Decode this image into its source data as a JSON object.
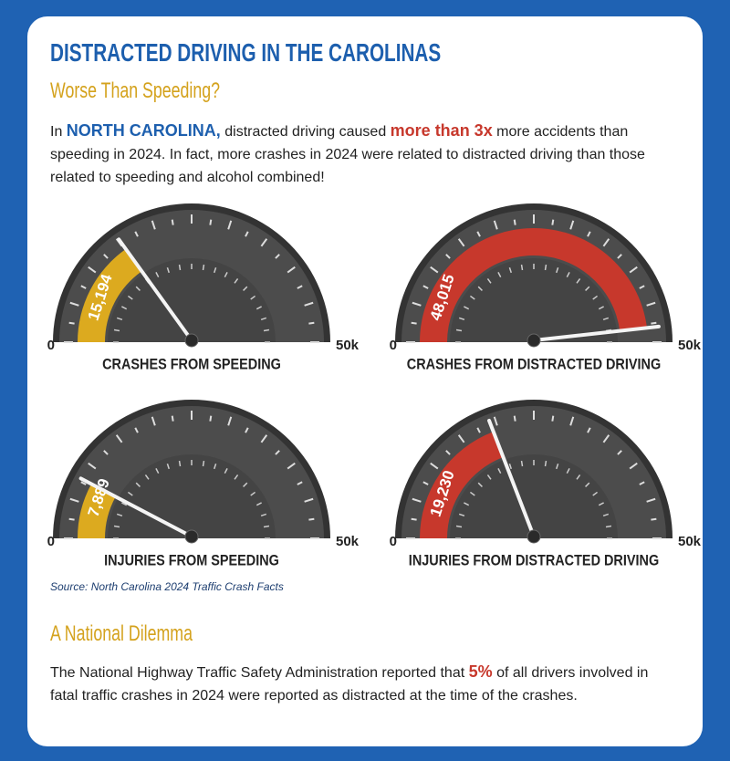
{
  "header": {
    "title": "DISTRACTED DRIVING IN THE CAROLINAS",
    "subtitle": "Worse Than Speeding?"
  },
  "intro": {
    "parts": [
      "In ",
      "NORTH CAROLINA,",
      " distracted driving caused ",
      "more than 3x",
      " more accidents than speeding in 2024. In fact, more crashes in 2024 were related to distracted driving than those related to speeding and alcohol combined!"
    ]
  },
  "chart_data": [
    {
      "type": "gauge",
      "title": "CRASHES FROM SPEEDING",
      "values": [
        15194
      ],
      "value_labels": [
        "15,194"
      ],
      "color": "#dcaa1f",
      "ylim": [
        0,
        50000
      ],
      "yticks": [
        0,
        {
          "value": 50000,
          "label": "50k"
        }
      ]
    },
    {
      "type": "gauge",
      "title": "CRASHES FROM DISTRACTED DRIVING",
      "values": [
        48015
      ],
      "value_labels": [
        "48,015"
      ],
      "color": "#c7382c",
      "ylim": [
        0,
        50000
      ],
      "yticks": [
        0,
        {
          "value": 50000,
          "label": "50k"
        }
      ]
    },
    {
      "type": "gauge",
      "title": "INJURIES FROM SPEEDING",
      "values": [
        7889
      ],
      "value_labels": [
        "7,889"
      ],
      "color": "#dcaa1f",
      "ylim": [
        0,
        50000
      ],
      "yticks": [
        0,
        {
          "value": 50000,
          "label": "50k"
        }
      ]
    },
    {
      "type": "gauge",
      "title": "INJURIES FROM DISTRACTED DRIVING",
      "values": [
        19230
      ],
      "value_labels": [
        "19,230"
      ],
      "color": "#c7382c",
      "ylim": [
        0,
        50000
      ],
      "yticks": [
        0,
        {
          "value": 50000,
          "label": "50k"
        }
      ]
    }
  ],
  "source": "Source: North Carolina 2024 Traffic Crash Facts",
  "section2": {
    "heading": "A National Dilemma",
    "parts": [
      "The National Highway Traffic Safety Administration reported that ",
      "5%",
      " of all drivers involved in fatal traffic crashes in 2024 were reported as distracted at the time of the crashes."
    ]
  }
}
